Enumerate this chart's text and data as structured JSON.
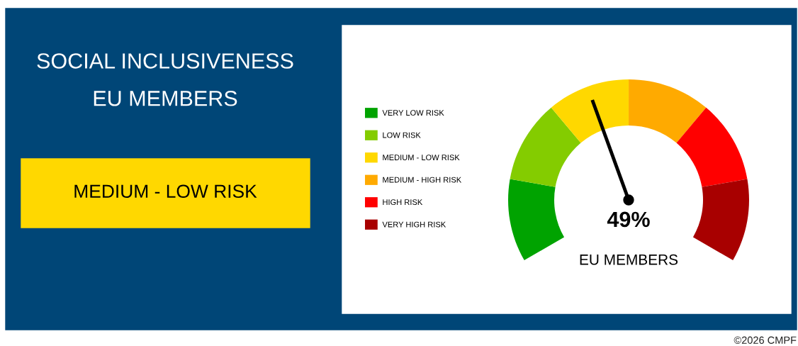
{
  "chart_data": {
    "type": "donut",
    "title": "SOCIAL INCLUSIVENESS\nEU MEMBERS",
    "categories": [
      "VERY LOW RISK",
      "LOW RISK",
      "MEDIUM - LOW RISK",
      "MEDIUM - HIGH RISK",
      "HIGH RISK",
      "VERY HIGH RISK"
    ],
    "values": [
      16.67,
      16.67,
      16.67,
      16.67,
      16.67,
      16.65
    ],
    "colors": [
      "#00a300",
      "#84cc00",
      "#ffd800",
      "#ffaa00",
      "#ff0000",
      "#a80000"
    ],
    "needle": "MEDIUM - LOW RISK",
    "legend": "left",
    "annotations": [
      "MEDIUM - LOW RISK",
      "49%",
      "EU MEMBERS",
      "©2026 CMPF"
    ]
  }
}
